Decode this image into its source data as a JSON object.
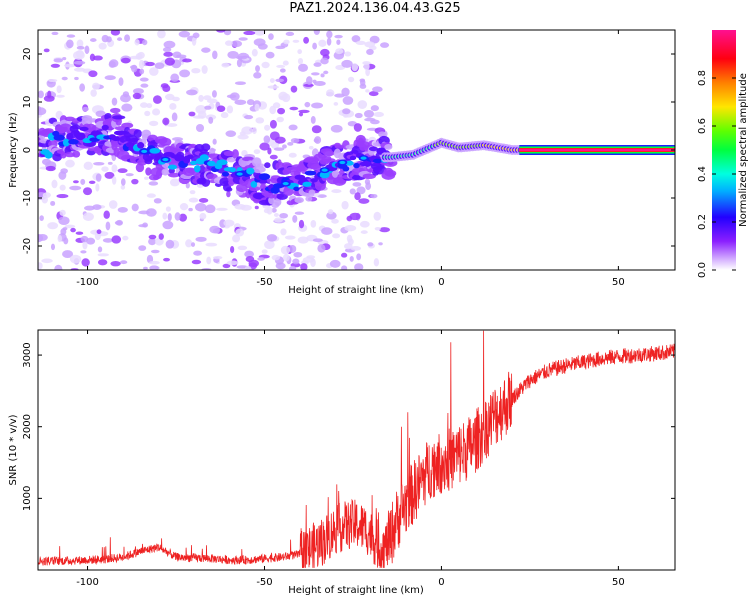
{
  "title": "PAZ1.2024.136.04.43.G25",
  "chart_data": [
    {
      "type": "heatmap",
      "title": "",
      "xlabel": "Height of straight line (km)",
      "ylabel": "Frequency (Hz)",
      "xlim": [
        -114,
        66
      ],
      "ylim": [
        -25,
        25
      ],
      "xticks": [
        -100,
        -50,
        0,
        50
      ],
      "yticks": [
        -20,
        -10,
        0,
        10,
        20
      ],
      "colorbar": {
        "label": "Normalized spectral amplitude",
        "range": [
          0.0,
          1.0
        ],
        "ticks": [
          0.0,
          0.2,
          0.4,
          0.6,
          0.8
        ],
        "colormap": "gist_rainbow_r"
      },
      "ridge_frequency_hz": [
        {
          "x": -110,
          "y": 2.5
        },
        {
          "x": -100,
          "y": 3.0
        },
        {
          "x": -92,
          "y": 3.5
        },
        {
          "x": -85,
          "y": 0.0
        },
        {
          "x": -78,
          "y": -2.0
        },
        {
          "x": -65,
          "y": -3.0
        },
        {
          "x": -57,
          "y": -5.0
        },
        {
          "x": -50,
          "y": -7.0
        },
        {
          "x": -42,
          "y": -7.0
        },
        {
          "x": -35,
          "y": -5.0
        },
        {
          "x": -30,
          "y": -3.0
        },
        {
          "x": -25,
          "y": -2.0
        },
        {
          "x": -20,
          "y": -1.5
        },
        {
          "x": -14,
          "y": -1.5
        },
        {
          "x": -8,
          "y": -1.0
        },
        {
          "x": 0,
          "y": 1.5
        },
        {
          "x": 5,
          "y": 0.5
        },
        {
          "x": 12,
          "y": 1.0
        },
        {
          "x": 20,
          "y": 0.0
        },
        {
          "x": 30,
          "y": 0.0
        },
        {
          "x": 50,
          "y": 0.0
        },
        {
          "x": 66,
          "y": 0.0
        }
      ]
    },
    {
      "type": "line",
      "title": "",
      "xlabel": "Height of straight line (km)",
      "ylabel": "SNR (10 * v/v)",
      "xlim": [
        -114,
        66
      ],
      "ylim": [
        0,
        3350
      ],
      "xticks": [
        -100,
        -50,
        0,
        50
      ],
      "yticks": [
        1000,
        2000,
        3000
      ],
      "series": [
        {
          "color": "#ee2222",
          "x": [
            -114,
            -105,
            -95,
            -90,
            -85,
            -80,
            -75,
            -70,
            -65,
            -60,
            -55,
            -50,
            -45,
            -40,
            -36,
            -33,
            -30,
            -27,
            -24,
            -21,
            -19,
            -17,
            -15,
            -13,
            -11,
            -9,
            -7,
            -5,
            -3,
            0,
            3,
            6,
            9,
            12,
            15,
            18,
            21,
            25,
            30,
            35,
            40,
            45,
            50,
            55,
            60,
            66
          ],
          "y": [
            120,
            130,
            150,
            180,
            260,
            320,
            180,
            170,
            160,
            140,
            140,
            160,
            180,
            220,
            320,
            420,
            560,
            620,
            640,
            560,
            420,
            280,
            380,
            650,
            850,
            1000,
            1150,
            1300,
            1450,
            1500,
            1550,
            1650,
            1750,
            1950,
            2150,
            2300,
            2450,
            2650,
            2780,
            2850,
            2900,
            2950,
            2980,
            3000,
            3020,
            3050
          ]
        }
      ]
    }
  ]
}
